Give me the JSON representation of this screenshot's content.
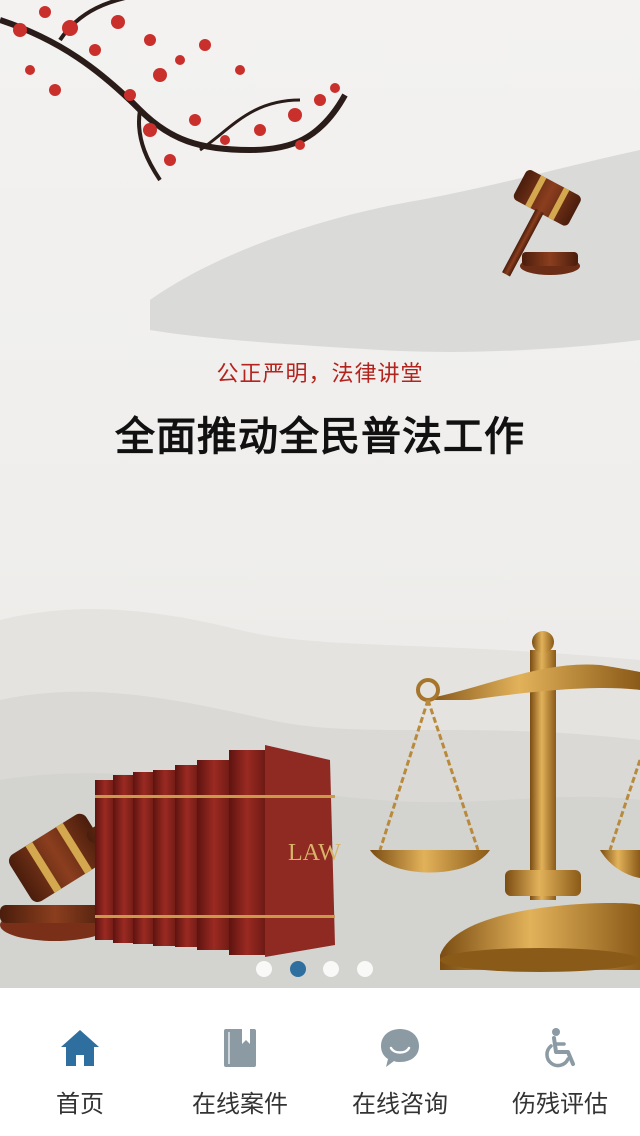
{
  "banner": {
    "slogan": "公正严明，法律讲堂",
    "headline": "全面推动全民普法工作",
    "book_label": "LAW",
    "carousel": {
      "count": 4,
      "active_index": 1
    }
  },
  "tabbar": {
    "items": [
      {
        "label": "首页",
        "icon": "home-icon"
      },
      {
        "label": "在线案件",
        "icon": "book-icon"
      },
      {
        "label": "在线咨询",
        "icon": "chat-bubble-icon"
      },
      {
        "label": "伤残评估",
        "icon": "wheelchair-icon"
      }
    ],
    "active_color": "#2f6f9f",
    "inactive_color": "#8b9aa3"
  }
}
